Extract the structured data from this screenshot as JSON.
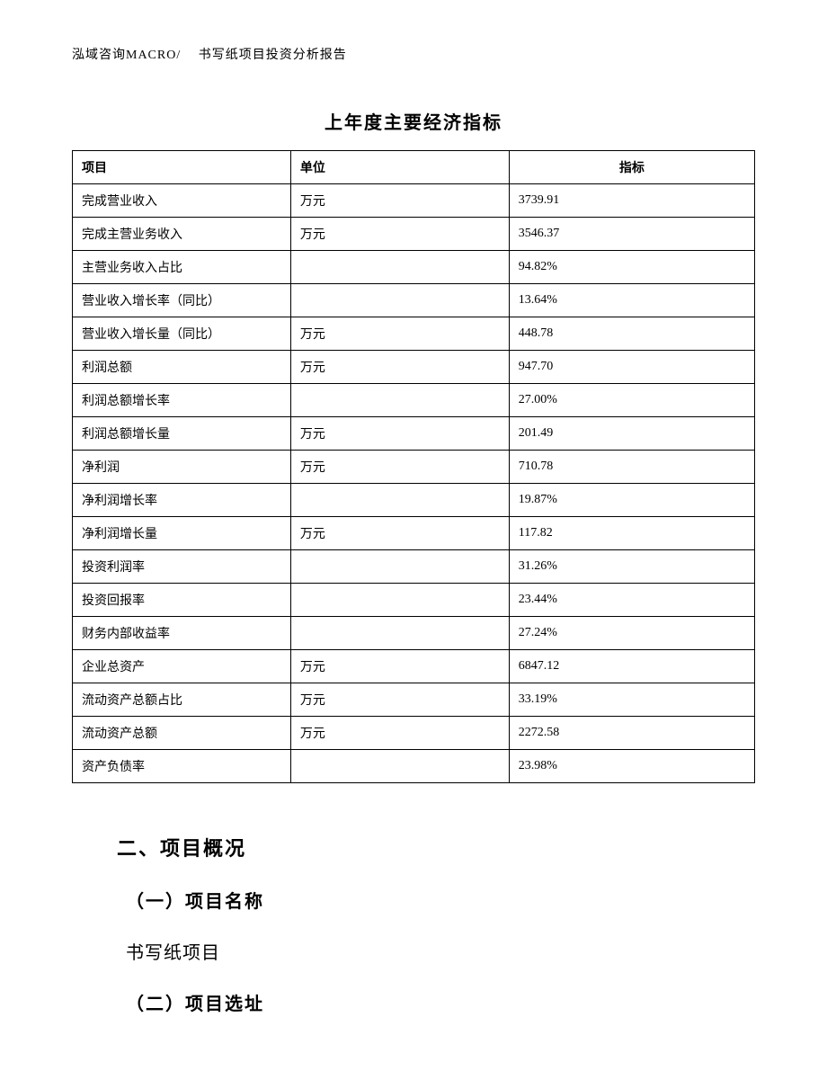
{
  "header": {
    "text": "泓域咨询MACRO/　 书写纸项目投资分析报告"
  },
  "table": {
    "title": "上年度主要经济指标",
    "columns": [
      "项目",
      "单位",
      "指标"
    ],
    "col_widths": [
      "32%",
      "32%",
      "36%"
    ],
    "header_align": [
      "left",
      "left",
      "center"
    ],
    "border_color": "#000000",
    "font_size": 14,
    "title_fontsize": 20,
    "rows": [
      {
        "name": "完成营业收入",
        "unit": "万元",
        "value": "3739.91"
      },
      {
        "name": "完成主营业务收入",
        "unit": "万元",
        "value": "3546.37"
      },
      {
        "name": "主营业务收入占比",
        "unit": "",
        "value": "94.82%"
      },
      {
        "name": "营业收入增长率（同比）",
        "unit": "",
        "value": "13.64%"
      },
      {
        "name": "营业收入增长量（同比）",
        "unit": "万元",
        "value": "448.78"
      },
      {
        "name": "利润总额",
        "unit": "万元",
        "value": "947.70"
      },
      {
        "name": "利润总额增长率",
        "unit": "",
        "value": "27.00%"
      },
      {
        "name": "利润总额增长量",
        "unit": "万元",
        "value": "201.49"
      },
      {
        "name": "净利润",
        "unit": "万元",
        "value": "710.78"
      },
      {
        "name": "净利润增长率",
        "unit": "",
        "value": "19.87%"
      },
      {
        "name": "净利润增长量",
        "unit": "万元",
        "value": "117.82"
      },
      {
        "name": "投资利润率",
        "unit": "",
        "value": "31.26%"
      },
      {
        "name": "投资回报率",
        "unit": "",
        "value": "23.44%"
      },
      {
        "name": "财务内部收益率",
        "unit": "",
        "value": "27.24%"
      },
      {
        "name": "企业总资产",
        "unit": "万元",
        "value": "6847.12"
      },
      {
        "name": "流动资产总额占比",
        "unit": "万元",
        "value": "33.19%"
      },
      {
        "name": "流动资产总额",
        "unit": "万元",
        "value": "2272.58"
      },
      {
        "name": "资产负债率",
        "unit": "",
        "value": "23.98%"
      }
    ]
  },
  "sections": {
    "heading_2": "二、项目概况",
    "sub_1": "（一）项目名称",
    "body_1": "书写纸项目",
    "sub_2": "（二）项目选址"
  },
  "colors": {
    "background": "#ffffff",
    "text": "#000000",
    "border": "#000000"
  },
  "typography": {
    "body_font": "SimSun",
    "header_fontsize": 14,
    "section_fontsize": 22,
    "subheading_fontsize": 20,
    "bodytext_fontsize": 20
  }
}
